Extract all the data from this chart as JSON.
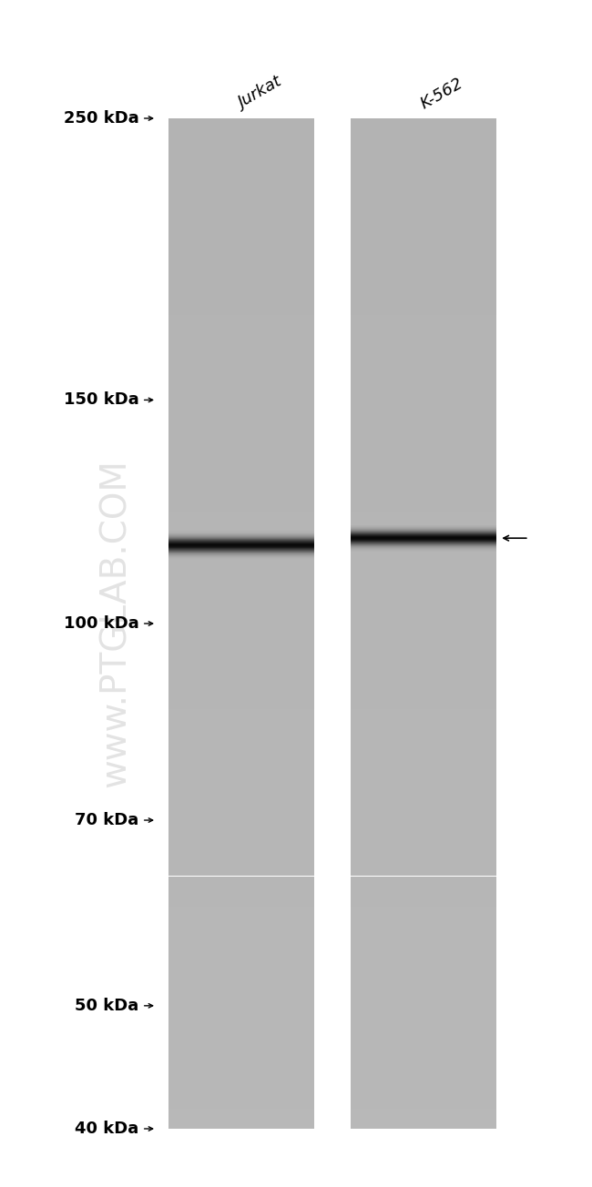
{
  "background_color": "#ffffff",
  "lane_labels": [
    "Jurkat",
    "K-562"
  ],
  "mw_markers": [
    "250 kDa",
    "150 kDa",
    "100 kDa",
    "70 kDa",
    "50 kDa",
    "40 kDa"
  ],
  "mw_values": [
    250,
    150,
    100,
    70,
    50,
    40
  ],
  "band_mw": 116,
  "fig_width": 6.5,
  "fig_height": 13.04,
  "watermark_lines": [
    "www.PTGLAB.COM"
  ],
  "watermark_color": "#cccccc",
  "mw_fontsize": 13,
  "lane_label_fontsize": 13,
  "lane_bg": "#b2b2b2",
  "lane_top_extra": "#c0c0c0"
}
